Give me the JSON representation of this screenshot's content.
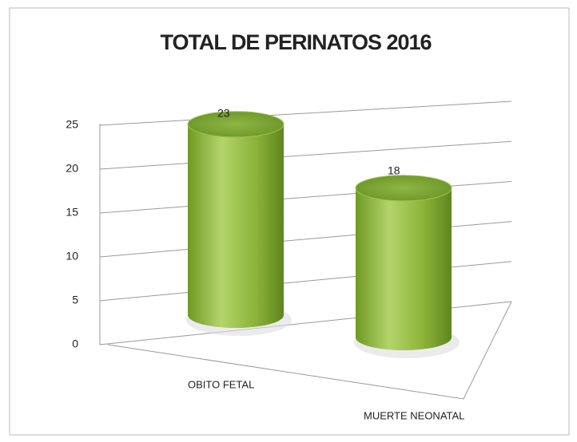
{
  "chart_data": {
    "type": "bar",
    "title": "TOTAL DE PERINATOS 2016",
    "categories": [
      "OBITO FETAL",
      "MUERTE NEONATAL"
    ],
    "values": [
      23,
      18
    ],
    "color": "#8cb43a",
    "ylim": [
      0,
      25
    ],
    "yticks": [
      0,
      5,
      10,
      15,
      20,
      25
    ],
    "grid": true
  }
}
